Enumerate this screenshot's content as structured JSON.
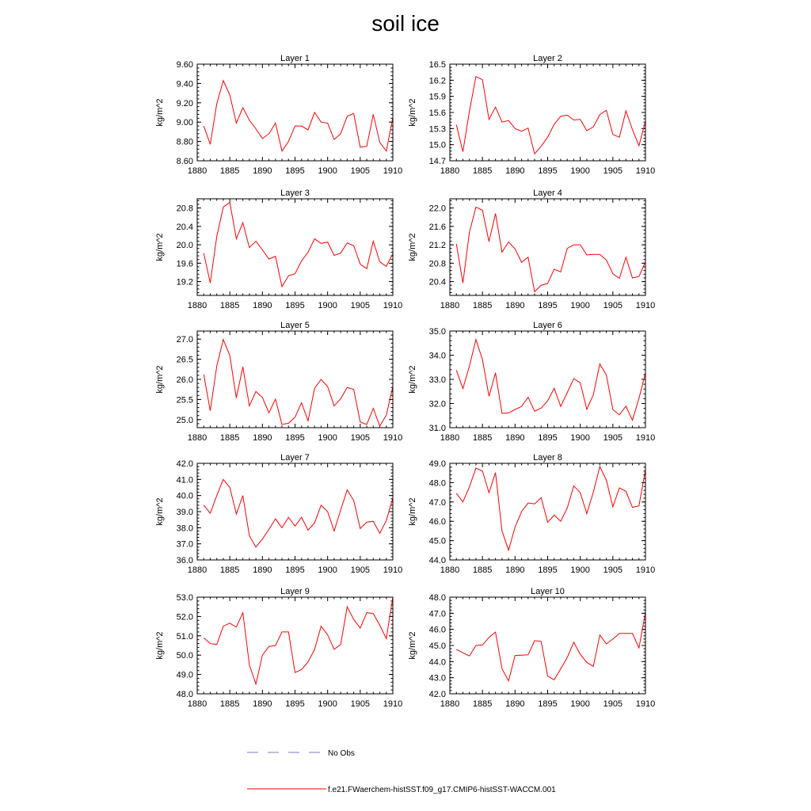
{
  "title": "soil ice",
  "legend": {
    "no_obs_label": "No Obs",
    "no_obs_color": "#7a7ac8",
    "model_label": "f.e21.FWaerchem-histSST.f09_g17.CMIP6-histSST-WACCM.001",
    "model_color": "#ff0000"
  },
  "chart_data": [
    {
      "type": "line",
      "title": "Layer 1",
      "ylabel": "kg/m^2",
      "xlim": [
        1880,
        1910
      ],
      "ylim": [
        8.6,
        9.6
      ],
      "yticks": [
        8.6,
        8.8,
        9.0,
        9.2,
        9.4,
        9.6
      ],
      "ytick_labels": [
        "8.60",
        "8.80",
        "9.00",
        "9.20",
        "9.40",
        "9.60"
      ],
      "xticks": [
        1880,
        1885,
        1890,
        1895,
        1900,
        1905,
        1910
      ],
      "xtick_labels": [
        "1880",
        "1885",
        "1890",
        "1895",
        "1900",
        "1905",
        "1910"
      ],
      "x": [
        1881,
        1882,
        1883,
        1884,
        1885,
        1886,
        1887,
        1888,
        1889,
        1890,
        1891,
        1892,
        1893,
        1894,
        1895,
        1896,
        1897,
        1898,
        1899,
        1900,
        1901,
        1902,
        1903,
        1904,
        1905,
        1906,
        1907,
        1908,
        1909,
        1910
      ],
      "series": [
        {
          "color": "#ff0000",
          "values": [
            8.96,
            8.77,
            9.19,
            9.43,
            9.28,
            8.99,
            9.15,
            9.02,
            8.93,
            8.83,
            8.88,
            8.99,
            8.7,
            8.8,
            8.96,
            8.96,
            8.92,
            9.1,
            9.0,
            8.99,
            8.82,
            8.88,
            9.06,
            9.09,
            8.74,
            8.75,
            9.08,
            8.79,
            8.7,
            9.05
          ]
        }
      ]
    },
    {
      "type": "line",
      "title": "Layer 2",
      "ylabel": "kg/m^2",
      "xlim": [
        1880,
        1910
      ],
      "ylim": [
        14.7,
        16.5
      ],
      "yticks": [
        14.7,
        15.0,
        15.3,
        15.6,
        15.9,
        16.2,
        16.5
      ],
      "ytick_labels": [
        "14.7",
        "15.0",
        "15.3",
        "15.6",
        "15.9",
        "16.2",
        "16.5"
      ],
      "xticks": [
        1880,
        1885,
        1890,
        1895,
        1900,
        1905,
        1910
      ],
      "xtick_labels": [
        "1880",
        "1885",
        "1890",
        "1895",
        "1900",
        "1905",
        "1910"
      ],
      "x": [
        1881,
        1882,
        1883,
        1884,
        1885,
        1886,
        1887,
        1888,
        1889,
        1890,
        1891,
        1892,
        1893,
        1894,
        1895,
        1896,
        1897,
        1898,
        1899,
        1900,
        1901,
        1902,
        1903,
        1904,
        1905,
        1906,
        1907,
        1908,
        1909,
        1910
      ],
      "series": [
        {
          "color": "#ff0000",
          "values": [
            15.37,
            14.87,
            15.62,
            16.27,
            16.21,
            15.47,
            15.7,
            15.42,
            15.45,
            15.3,
            15.25,
            15.31,
            14.83,
            14.97,
            15.14,
            15.38,
            15.53,
            15.55,
            15.46,
            15.47,
            15.26,
            15.33,
            15.56,
            15.64,
            15.19,
            15.14,
            15.63,
            15.28,
            14.98,
            15.44
          ]
        }
      ]
    },
    {
      "type": "line",
      "title": "Layer 3",
      "ylabel": "kg/m^2",
      "xlim": [
        1880,
        1910
      ],
      "ylim": [
        18.9,
        21.0
      ],
      "yticks": [
        19.2,
        19.6,
        20.0,
        20.4,
        20.8
      ],
      "ytick_labels": [
        "19.2",
        "19.6",
        "20.0",
        "20.4",
        "20.8"
      ],
      "xticks": [
        1880,
        1885,
        1890,
        1895,
        1900,
        1905,
        1910
      ],
      "xtick_labels": [
        "1880",
        "1885",
        "1890",
        "1895",
        "1900",
        "1905",
        "1910"
      ],
      "x": [
        1881,
        1882,
        1883,
        1884,
        1885,
        1886,
        1887,
        1888,
        1889,
        1890,
        1891,
        1892,
        1893,
        1894,
        1895,
        1896,
        1897,
        1898,
        1899,
        1900,
        1901,
        1902,
        1903,
        1904,
        1905,
        1906,
        1907,
        1908,
        1909,
        1910
      ],
      "series": [
        {
          "color": "#ff0000",
          "values": [
            19.82,
            19.17,
            20.18,
            20.82,
            20.92,
            20.13,
            20.48,
            19.94,
            20.08,
            19.89,
            19.69,
            19.75,
            19.09,
            19.33,
            19.37,
            19.65,
            19.84,
            20.13,
            20.03,
            20.06,
            19.77,
            19.82,
            20.04,
            19.98,
            19.58,
            19.48,
            20.08,
            19.63,
            19.53,
            19.81
          ]
        }
      ]
    },
    {
      "type": "line",
      "title": "Layer 4",
      "ylabel": "kg/m^2",
      "xlim": [
        1880,
        1910
      ],
      "ylim": [
        20.1,
        22.2
      ],
      "yticks": [
        20.4,
        20.8,
        21.2,
        21.6,
        22.0
      ],
      "ytick_labels": [
        "20.4",
        "20.8",
        "21.2",
        "21.6",
        "22.0"
      ],
      "xticks": [
        1880,
        1885,
        1890,
        1895,
        1900,
        1905,
        1910
      ],
      "xtick_labels": [
        "1880",
        "1885",
        "1890",
        "1895",
        "1900",
        "1905",
        "1910"
      ],
      "x": [
        1881,
        1882,
        1883,
        1884,
        1885,
        1886,
        1887,
        1888,
        1889,
        1890,
        1891,
        1892,
        1893,
        1894,
        1895,
        1896,
        1897,
        1898,
        1899,
        1900,
        1901,
        1902,
        1903,
        1904,
        1905,
        1906,
        1907,
        1908,
        1909,
        1910
      ],
      "series": [
        {
          "color": "#ff0000",
          "values": [
            21.22,
            20.37,
            21.47,
            22.02,
            21.95,
            21.27,
            21.88,
            21.04,
            21.26,
            21.11,
            20.82,
            20.93,
            20.18,
            20.32,
            20.36,
            20.67,
            20.61,
            21.12,
            21.2,
            21.2,
            20.98,
            20.99,
            20.99,
            20.87,
            20.57,
            20.47,
            20.93,
            20.48,
            20.51,
            20.83
          ]
        }
      ]
    },
    {
      "type": "line",
      "title": "Layer 5",
      "ylabel": "kg/m^2",
      "xlim": [
        1880,
        1910
      ],
      "ylim": [
        24.8,
        27.2
      ],
      "yticks": [
        25.0,
        25.5,
        26.0,
        26.5,
        27.0
      ],
      "ytick_labels": [
        "25.0",
        "25.5",
        "26.0",
        "26.5",
        "27.0"
      ],
      "xticks": [
        1880,
        1885,
        1890,
        1895,
        1900,
        1905,
        1910
      ],
      "xtick_labels": [
        "1880",
        "1885",
        "1890",
        "1895",
        "1900",
        "1905",
        "1910"
      ],
      "x": [
        1881,
        1882,
        1883,
        1884,
        1885,
        1886,
        1887,
        1888,
        1889,
        1890,
        1891,
        1892,
        1893,
        1894,
        1895,
        1896,
        1897,
        1898,
        1899,
        1900,
        1901,
        1902,
        1903,
        1904,
        1905,
        1906,
        1907,
        1908,
        1909,
        1910
      ],
      "series": [
        {
          "color": "#ff0000",
          "values": [
            26.12,
            25.22,
            26.33,
            26.99,
            26.59,
            25.54,
            26.31,
            25.34,
            25.7,
            25.55,
            25.17,
            25.51,
            24.88,
            24.91,
            25.06,
            25.42,
            24.97,
            25.78,
            26.0,
            25.82,
            25.34,
            25.52,
            25.8,
            25.75,
            24.94,
            24.88,
            25.28,
            24.84,
            25.11,
            25.82
          ]
        }
      ]
    },
    {
      "type": "line",
      "title": "Layer 6",
      "ylabel": "kg/m^2",
      "xlim": [
        1880,
        1910
      ],
      "ylim": [
        31.0,
        35.0
      ],
      "yticks": [
        31.0,
        32.0,
        33.0,
        34.0,
        35.0
      ],
      "ytick_labels": [
        "31.0",
        "32.0",
        "33.0",
        "34.0",
        "35.0"
      ],
      "xticks": [
        1880,
        1885,
        1890,
        1895,
        1900,
        1905,
        1910
      ],
      "xtick_labels": [
        "1880",
        "1885",
        "1890",
        "1895",
        "1900",
        "1905",
        "1910"
      ],
      "x": [
        1881,
        1882,
        1883,
        1884,
        1885,
        1886,
        1887,
        1888,
        1889,
        1890,
        1891,
        1892,
        1893,
        1894,
        1895,
        1896,
        1897,
        1898,
        1899,
        1900,
        1901,
        1902,
        1903,
        1904,
        1905,
        1906,
        1907,
        1908,
        1909,
        1910
      ],
      "series": [
        {
          "color": "#ff0000",
          "values": [
            33.38,
            32.62,
            33.55,
            34.65,
            33.82,
            32.3,
            33.27,
            31.59,
            31.61,
            31.75,
            31.88,
            32.26,
            31.68,
            31.81,
            32.11,
            32.63,
            31.88,
            32.45,
            33.03,
            32.86,
            31.76,
            32.36,
            33.64,
            33.18,
            31.75,
            31.53,
            31.89,
            31.31,
            32.21,
            33.27
          ]
        }
      ]
    },
    {
      "type": "line",
      "title": "Layer 7",
      "ylabel": "kg/m^2",
      "xlim": [
        1880,
        1910
      ],
      "ylim": [
        36.0,
        42.0
      ],
      "yticks": [
        36.0,
        37.0,
        38.0,
        39.0,
        40.0,
        41.0,
        42.0
      ],
      "ytick_labels": [
        "36.0",
        "37.0",
        "38.0",
        "39.0",
        "40.0",
        "41.0",
        "42.0"
      ],
      "xticks": [
        1880,
        1885,
        1890,
        1895,
        1900,
        1905,
        1910
      ],
      "xtick_labels": [
        "1880",
        "1885",
        "1890",
        "1895",
        "1900",
        "1905",
        "1910"
      ],
      "x": [
        1881,
        1882,
        1883,
        1884,
        1885,
        1886,
        1887,
        1888,
        1889,
        1890,
        1891,
        1892,
        1893,
        1894,
        1895,
        1896,
        1897,
        1898,
        1899,
        1900,
        1901,
        1902,
        1903,
        1904,
        1905,
        1906,
        1907,
        1908,
        1909,
        1910
      ],
      "series": [
        {
          "color": "#ff0000",
          "values": [
            39.4,
            38.9,
            40.0,
            41.0,
            40.5,
            38.85,
            40.0,
            37.5,
            36.8,
            37.3,
            37.9,
            38.55,
            38.0,
            38.65,
            38.1,
            38.65,
            37.85,
            38.3,
            39.4,
            39.0,
            37.8,
            39.1,
            40.35,
            39.7,
            37.95,
            38.35,
            38.4,
            37.65,
            38.45,
            39.85
          ]
        }
      ]
    },
    {
      "type": "line",
      "title": "Layer 8",
      "ylabel": "kg/m^2",
      "xlim": [
        1880,
        1910
      ],
      "ylim": [
        44.0,
        49.0
      ],
      "yticks": [
        44.0,
        45.0,
        46.0,
        47.0,
        48.0,
        49.0
      ],
      "ytick_labels": [
        "44.0",
        "45.0",
        "46.0",
        "47.0",
        "48.0",
        "49.0"
      ],
      "xticks": [
        1880,
        1885,
        1890,
        1895,
        1900,
        1905,
        1910
      ],
      "xtick_labels": [
        "1880",
        "1885",
        "1890",
        "1895",
        "1900",
        "1905",
        "1910"
      ],
      "x": [
        1881,
        1882,
        1883,
        1884,
        1885,
        1886,
        1887,
        1888,
        1889,
        1890,
        1891,
        1892,
        1893,
        1894,
        1895,
        1896,
        1897,
        1898,
        1899,
        1900,
        1901,
        1902,
        1903,
        1904,
        1905,
        1906,
        1907,
        1908,
        1909,
        1910
      ],
      "series": [
        {
          "color": "#ff0000",
          "values": [
            47.45,
            47.0,
            47.78,
            48.75,
            48.6,
            47.48,
            48.52,
            45.5,
            44.5,
            45.7,
            46.5,
            46.95,
            46.9,
            47.22,
            45.95,
            46.32,
            46.0,
            46.68,
            47.83,
            47.48,
            46.4,
            47.5,
            48.83,
            48.13,
            46.75,
            47.73,
            47.55,
            46.72,
            46.8,
            48.68
          ]
        }
      ]
    },
    {
      "type": "line",
      "title": "Layer 9",
      "ylabel": "kg/m^2",
      "xlim": [
        1880,
        1910
      ],
      "ylim": [
        48.0,
        53.0
      ],
      "yticks": [
        48.0,
        49.0,
        50.0,
        51.0,
        52.0,
        53.0
      ],
      "ytick_labels": [
        "48.0",
        "49.0",
        "50.0",
        "51.0",
        "52.0",
        "53.0"
      ],
      "xticks": [
        1880,
        1885,
        1890,
        1895,
        1900,
        1905,
        1910
      ],
      "xtick_labels": [
        "1880",
        "1885",
        "1890",
        "1895",
        "1900",
        "1905",
        "1910"
      ],
      "x": [
        1881,
        1882,
        1883,
        1884,
        1885,
        1886,
        1887,
        1888,
        1889,
        1890,
        1891,
        1892,
        1893,
        1894,
        1895,
        1896,
        1897,
        1898,
        1899,
        1900,
        1901,
        1902,
        1903,
        1904,
        1905,
        1906,
        1907,
        1908,
        1909,
        1910
      ],
      "series": [
        {
          "color": "#ff0000",
          "values": [
            50.9,
            50.6,
            50.55,
            51.5,
            51.65,
            51.45,
            52.2,
            49.5,
            48.5,
            50.0,
            50.45,
            50.5,
            51.2,
            51.2,
            49.1,
            49.25,
            49.65,
            50.3,
            51.5,
            51.05,
            50.3,
            50.55,
            52.5,
            51.85,
            51.4,
            52.2,
            52.15,
            51.55,
            50.85,
            53.0
          ]
        }
      ]
    },
    {
      "type": "line",
      "title": "Layer 10",
      "ylabel": "kg/m^2",
      "xlim": [
        1880,
        1910
      ],
      "ylim": [
        42.0,
        48.0
      ],
      "yticks": [
        42.0,
        43.0,
        44.0,
        45.0,
        46.0,
        47.0,
        48.0
      ],
      "ytick_labels": [
        "42.0",
        "43.0",
        "44.0",
        "45.0",
        "46.0",
        "47.0",
        "48.0"
      ],
      "xticks": [
        1880,
        1885,
        1890,
        1895,
        1900,
        1905,
        1910
      ],
      "xtick_labels": [
        "1880",
        "1885",
        "1890",
        "1895",
        "1900",
        "1905",
        "1910"
      ],
      "x": [
        1881,
        1882,
        1883,
        1884,
        1885,
        1886,
        1887,
        1888,
        1889,
        1890,
        1891,
        1892,
        1893,
        1894,
        1895,
        1896,
        1897,
        1898,
        1899,
        1900,
        1901,
        1902,
        1903,
        1904,
        1905,
        1906,
        1907,
        1908,
        1909,
        1910
      ],
      "series": [
        {
          "color": "#ff0000",
          "values": [
            44.75,
            44.55,
            44.35,
            45.0,
            45.03,
            45.5,
            45.83,
            43.55,
            42.8,
            44.38,
            44.4,
            44.42,
            45.3,
            45.25,
            43.1,
            42.87,
            43.55,
            44.25,
            45.2,
            44.45,
            43.95,
            43.7,
            45.65,
            45.1,
            45.4,
            45.75,
            45.75,
            45.75,
            44.85,
            47.05
          ]
        }
      ]
    }
  ]
}
